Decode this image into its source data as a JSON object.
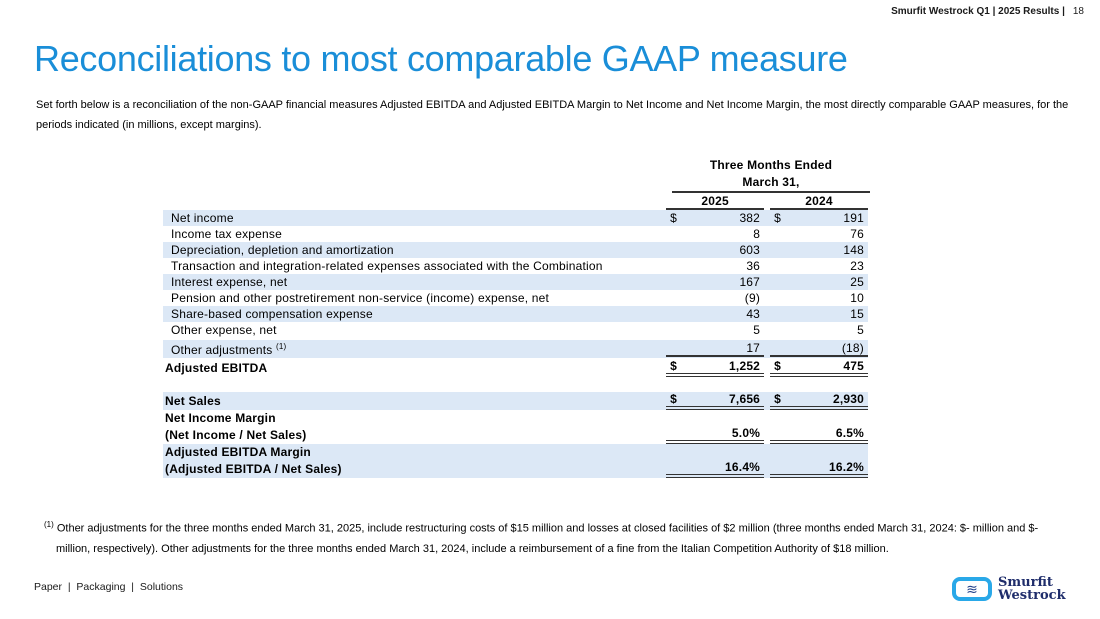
{
  "header": {
    "source": "Smurfit Westrock Q1 | 2025 Results |",
    "page": "18"
  },
  "title": "Reconciliations to most comparable GAAP measure",
  "intro": "Set forth below is a reconciliation of the non-GAAP financial measures Adjusted EBITDA and Adjusted EBITDA Margin to Net Income and Net Income Margin, the most directly comparable GAAP measures, for the periods indicated (in millions, except margins).",
  "table": {
    "period_header": "Three Months Ended",
    "period_header2": "March 31,",
    "years": [
      "2025",
      "2024"
    ],
    "rows": [
      {
        "label": "Net income",
        "c1s": "$",
        "v1": "382",
        "c2s": "$",
        "v2": "191"
      },
      {
        "label": "Income tax expense",
        "v1": "8",
        "v2": "76"
      },
      {
        "label": "Depreciation, depletion and amortization",
        "v1": "603",
        "v2": "148"
      },
      {
        "label": "Transaction and integration-related expenses associated with the Combination",
        "v1": "36",
        "v2": "23"
      },
      {
        "label": "Interest expense, net",
        "v1": "167",
        "v2": "25"
      },
      {
        "label": "Pension and other postretirement non-service (income) expense, net",
        "v1": "(9)",
        "v2": "10"
      },
      {
        "label": "Share-based compensation expense",
        "v1": "43",
        "v2": "15"
      },
      {
        "label": "Other expense, net",
        "v1": "5",
        "v2": "5"
      },
      {
        "label": "Other adjustments",
        "sup": "(1)",
        "v1": "17",
        "v2": "(18)"
      },
      {
        "label": "Adjusted EBITDA",
        "c1s": "$",
        "v1": "1,252",
        "c2s": "$",
        "v2": "475"
      },
      {
        "label": "Net Sales",
        "c1s": "$",
        "v1": "7,656",
        "c2s": "$",
        "v2": "2,930"
      },
      {
        "label": "Net Income Margin",
        "label2": "(Net Income / Net Sales)",
        "v1": "5.0%",
        "v2": "6.5%"
      },
      {
        "label": "Adjusted EBITDA Margin",
        "label2": "(Adjusted EBITDA / Net Sales)",
        "v1": "16.4%",
        "v2": "16.2%"
      }
    ]
  },
  "footnote": {
    "marker": "(1)",
    "text": " Other adjustments for the three months ended March 31, 2025, include restructuring costs of $15 million and losses at closed facilities of $2 million (three months ended March 31, 2024: $- million and $- million, respectively). Other adjustments for the three months ended March 31, 2024, include a reimbursement of a fine from the Italian Competition Authority of $18 million."
  },
  "tagline": "Paper  |  Packaging  |  Solutions",
  "logo": {
    "line1": "Smurfit",
    "line2": "Westrock"
  },
  "colors": {
    "title": "#1a8ed8",
    "row_shade": "#dce8f6",
    "logo_navy": "#1f2d6b",
    "logo_blue": "#29a8e8"
  }
}
